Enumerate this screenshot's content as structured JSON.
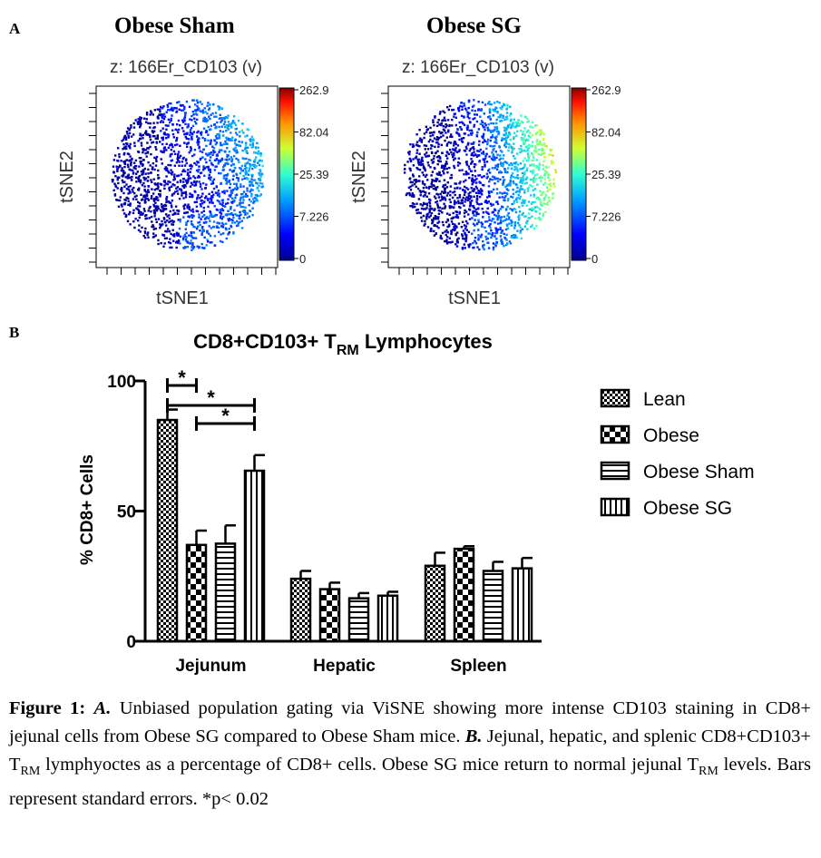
{
  "panels": {
    "a_letter": "A",
    "b_letter": "B"
  },
  "tsne": [
    {
      "title": "Obese Sham",
      "subtitle": "z: 166Er_CD103 (v)",
      "xlabel": "tSNE1",
      "ylabel": "tSNE2",
      "colorbar_ticks": [
        "262.9",
        "82.04",
        "25.39",
        "7.226",
        "0"
      ]
    },
    {
      "title": "Obese SG",
      "subtitle": "z: 166Er_CD103 (v)",
      "xlabel": "tSNE1",
      "ylabel": "tSNE2",
      "colorbar_ticks": [
        "262.9",
        "82.04",
        "25.39",
        "7.226",
        "0"
      ]
    }
  ],
  "chart_data": {
    "type": "bar",
    "title_main": "CD8+CD103+ T",
    "title_sub": "RM",
    "title_rest": " Lymphocytes",
    "ylabel": "% CD8+ Cells",
    "ylim": [
      0,
      100
    ],
    "yticks": [
      "0",
      "50",
      "100"
    ],
    "categories": [
      "Jejunum",
      "Hepatic",
      "Spleen"
    ],
    "series": [
      {
        "name": "Lean",
        "pattern": "checker-fine",
        "values": [
          85,
          24,
          29
        ],
        "errors": [
          4,
          3,
          5
        ]
      },
      {
        "name": "Obese",
        "pattern": "checker-coarse",
        "values": [
          37,
          20,
          35.5
        ],
        "errors": [
          5.5,
          2.5,
          1
        ]
      },
      {
        "name": "Obese Sham",
        "pattern": "horizontal",
        "values": [
          37.5,
          16.5,
          27
        ],
        "errors": [
          7,
          2,
          3.5
        ]
      },
      {
        "name": "Obese SG",
        "pattern": "vertical",
        "values": [
          65.5,
          17.5,
          28
        ],
        "errors": [
          6,
          1.5,
          4
        ]
      }
    ],
    "significance": [
      {
        "from": "Lean",
        "to": "Obese",
        "label": "*"
      },
      {
        "from": "Lean",
        "to": "Obese SG",
        "label": "*"
      },
      {
        "from": "Obese",
        "to": "Obese SG",
        "label": "*"
      }
    ],
    "legend_position": "right"
  },
  "caption": {
    "fig_label": "Figure 1:",
    "a_label": "A.",
    "a_text": " Unbiased population gating via ViSNE showing more intense CD103 staining in CD8+ jejunal cells from Obese SG compared to Obese Sham mice. ",
    "b_label": "B.",
    "b_text1": " Jejunal, hepatic, and splenic CD8+CD103+ T",
    "b_sub1": "RM",
    "b_text2": " lymphyoctes as a percentage of CD8+ cells. Obese SG mice return to normal jejunal T",
    "b_sub2": "RM",
    "b_text3": " levels. Bars represent standard errors. *p< 0.02"
  }
}
